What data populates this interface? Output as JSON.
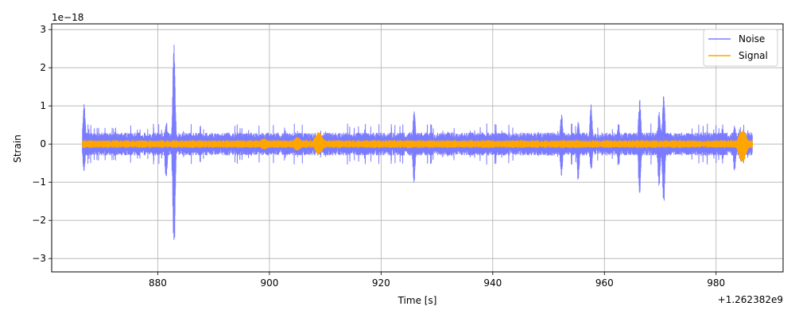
{
  "chart_data": {
    "type": "line",
    "xlabel": "Time [s]",
    "ylabel": "Strain",
    "x_offset_label": "+1.262382e9",
    "y_scale_label": "1e−18",
    "xlim": [
      861,
      992
    ],
    "ylim": [
      -3.35,
      3.15
    ],
    "x_range": [
      866.5,
      986.5
    ],
    "xticks": [
      880,
      900,
      920,
      940,
      960,
      980
    ],
    "xtick_labels": [
      "880",
      "900",
      "920",
      "940",
      "960",
      "980"
    ],
    "yticks": [
      -3,
      -2,
      -1,
      0,
      1,
      2,
      3
    ],
    "ytick_labels": [
      "−3",
      "−2",
      "−1",
      "0",
      "1",
      "2",
      "3"
    ],
    "grid": true,
    "legend_position": "top-right",
    "series": [
      {
        "name": "Noise",
        "color": "#7b7bff",
        "baseline_envelope": 0.3,
        "bursts": [
          {
            "t": 866.8,
            "high": 1.12,
            "low": -0.75
          },
          {
            "t": 882.9,
            "high": 2.85,
            "low": -3.02
          },
          {
            "t": 881.5,
            "high": 0.6,
            "low": -0.98
          },
          {
            "t": 925.9,
            "high": 0.93,
            "low": -1.1
          },
          {
            "t": 955.3,
            "high": 0.6,
            "low": -1.0
          },
          {
            "t": 957.6,
            "high": 1.12,
            "low": -0.72
          },
          {
            "t": 966.3,
            "high": 1.22,
            "low": -1.38
          },
          {
            "t": 970.6,
            "high": 1.42,
            "low": -1.67
          },
          {
            "t": 969.8,
            "high": 0.9,
            "low": -1.2
          },
          {
            "t": 983.3,
            "high": 0.52,
            "low": -0.78
          },
          {
            "t": 952.3,
            "high": 0.85,
            "low": -0.85
          },
          {
            "t": 962.5,
            "high": 0.55,
            "low": -0.6
          }
        ]
      },
      {
        "name": "Signal",
        "color": "#ffa500",
        "baseline_envelope": 0.1,
        "bursts": [
          {
            "t": 908.8,
            "high": 0.33,
            "low": -0.28
          },
          {
            "t": 905.0,
            "high": 0.18,
            "low": -0.18
          },
          {
            "t": 899.0,
            "high": 0.15,
            "low": -0.15
          },
          {
            "t": 984.7,
            "high": 0.4,
            "low": -0.48
          }
        ]
      }
    ]
  }
}
